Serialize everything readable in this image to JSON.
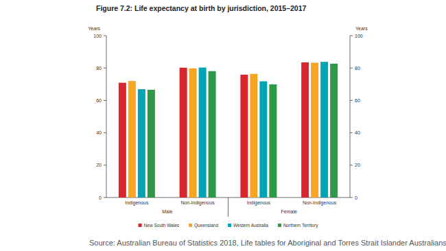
{
  "chart_data": {
    "type": "bar",
    "title": "Figure 7.2: Life expectancy at birth by jurisdiction, 2015–2017",
    "y_label": "Years",
    "y2_label": "Years",
    "categories": [
      "Indigenous",
      "Non-Indigenous",
      "Indigenous",
      "Non-Indigenous"
    ],
    "groups": [
      "Male",
      "Female"
    ],
    "series": [
      {
        "name": "New South Wales",
        "color": "#d7262e",
        "values": [
          70.9,
          80.2,
          75.9,
          83.5
        ]
      },
      {
        "name": "Queensland",
        "color": "#f6a623",
        "values": [
          72.0,
          79.8,
          76.4,
          83.3
        ]
      },
      {
        "name": "Western Australia",
        "color": "#00a4b4",
        "values": [
          66.9,
          80.3,
          71.8,
          83.8
        ]
      },
      {
        "name": "Northern Territory",
        "color": "#2e9a48",
        "values": [
          66.6,
          78.1,
          69.9,
          82.7
        ]
      }
    ],
    "ylim": [
      0,
      100
    ],
    "yticks": [
      0,
      20,
      40,
      60,
      80,
      100
    ],
    "y2lim": [
      0,
      100
    ],
    "y2ticks": [
      0,
      20,
      40,
      60,
      80,
      100
    ],
    "grid": false,
    "legend": "bottom",
    "source": "Source: Australian Bureau of Statistics 2018, Life tables for Aboriginal and Torres Strait Islander Australians,"
  }
}
